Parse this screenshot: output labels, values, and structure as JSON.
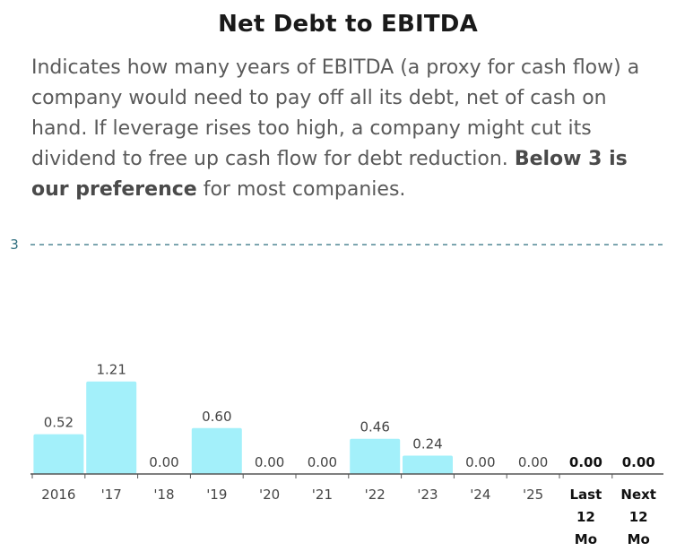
{
  "header": {
    "title": "Net Debt to EBITDA",
    "description_text": "Indicates how many years of EBITDA (a proxy for cash flow) a company would need to pay off all its debt, net of cash on hand. If leverage rises too high, a company might cut its dividend to free up cash flow for debt reduction.",
    "description_bold": "Below 3 is our preference",
    "description_tail": "for most companies."
  },
  "colors": {
    "bar": "#a3f0fa",
    "reference_line": "#2f6f7f",
    "axis": "#555555"
  },
  "chart_data": {
    "type": "bar",
    "title": "Net Debt to EBITDA",
    "xlabel": "",
    "ylabel": "",
    "ylim": [
      0,
      3
    ],
    "reference_line": {
      "value": 3,
      "label": "3",
      "style": "dashed"
    },
    "categories": [
      "2016",
      "'17",
      "'18",
      "'19",
      "'20",
      "'21",
      "'22",
      "'23",
      "'24",
      "'25",
      "Last 12 Mo",
      "Next 12 Mo"
    ],
    "category_lines": [
      [
        "2016"
      ],
      [
        "'17"
      ],
      [
        "'18"
      ],
      [
        "'19"
      ],
      [
        "'20"
      ],
      [
        "'21"
      ],
      [
        "'22"
      ],
      [
        "'23"
      ],
      [
        "'24"
      ],
      [
        "'25"
      ],
      [
        "Last",
        "12",
        "Mo"
      ],
      [
        "Next",
        "12",
        "Mo"
      ]
    ],
    "values": [
      0.52,
      1.21,
      0.0,
      0.6,
      0.0,
      0.0,
      0.46,
      0.24,
      0.0,
      0.0,
      0.0,
      0.0
    ],
    "value_labels": [
      "0.52",
      "1.21",
      "0.00",
      "0.60",
      "0.00",
      "0.00",
      "0.46",
      "0.24",
      "0.00",
      "0.00",
      "0.00",
      "0.00"
    ],
    "highlighted": [
      false,
      false,
      false,
      false,
      false,
      false,
      false,
      false,
      false,
      false,
      true,
      true
    ]
  }
}
